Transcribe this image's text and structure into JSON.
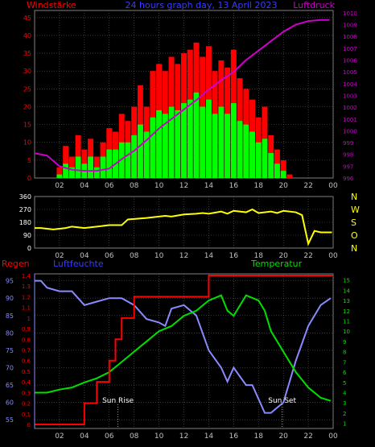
{
  "header": {
    "left_title": "Windstärke",
    "center_title": "24 hours graph day, 13 April 2023",
    "right_title": "Luftdruck"
  },
  "time_ticks": [
    "02",
    "04",
    "06",
    "08",
    "10",
    "12",
    "14",
    "16",
    "18",
    "20",
    "22",
    "00"
  ],
  "colors": {
    "wind_max": "#ff0000",
    "wind_avg": "#00ff00",
    "pressure": "#cc00cc",
    "direction": "#ffff00",
    "rain": "#ff0000",
    "humidity": "#8a8aff",
    "temperature": "#00e000",
    "left_axis": "#ff0000",
    "right_axis": "#cc00cc",
    "grid": "#606060",
    "label_blue": "#3a3aff"
  },
  "chart_data": [
    {
      "type": "bar",
      "title": "24 hours graph day, 13 April 2023",
      "series": [
        {
          "name": "Windstärke",
          "x": [
            0.5,
            1,
            1.5,
            2,
            2.5,
            3,
            3.5,
            4,
            4.5,
            5,
            5.5,
            6,
            6.5,
            7,
            7.5,
            8,
            8.5,
            9,
            9.5,
            10,
            10.5,
            11,
            11.5,
            12,
            12.5,
            13,
            13.5,
            14,
            14.5,
            15,
            15.5,
            16,
            16.5,
            17,
            17.5,
            18,
            18.5,
            19,
            19.5,
            20,
            20.5,
            21
          ],
          "values": [
            0,
            0,
            0,
            3,
            9,
            6,
            12,
            8,
            11,
            6,
            10,
            14,
            13,
            18,
            16,
            20,
            26,
            20,
            30,
            32,
            30,
            34,
            32,
            35,
            36,
            38,
            34,
            37,
            30,
            33,
            31,
            36,
            28,
            25,
            22,
            17,
            20,
            12,
            8,
            5,
            1,
            0
          ]
        },
        {
          "name": "Windstärke (avg)",
          "x": [
            0.5,
            1,
            1.5,
            2,
            2.5,
            3,
            3.5,
            4,
            4.5,
            5,
            5.5,
            6,
            6.5,
            7,
            7.5,
            8,
            8.5,
            9,
            9.5,
            10,
            10.5,
            11,
            11.5,
            12,
            12.5,
            13,
            13.5,
            14,
            14.5,
            15,
            15.5,
            16,
            16.5,
            17,
            17.5,
            18,
            18.5,
            19,
            19.5,
            20,
            20.5,
            21
          ],
          "values": [
            0,
            0,
            0,
            1,
            4,
            3,
            6,
            4,
            6,
            3,
            6,
            8,
            8,
            10,
            10,
            12,
            15,
            13,
            17,
            19,
            18,
            20,
            19,
            21,
            22,
            24,
            20,
            22,
            18,
            20,
            18,
            21,
            16,
            15,
            13,
            10,
            11,
            7,
            4,
            2,
            0,
            0
          ]
        },
        {
          "name": "Luftdruck",
          "axis": "right",
          "x": [
            0,
            1,
            2,
            3,
            4,
            5,
            6,
            7,
            8,
            9,
            10,
            11,
            12,
            13,
            14,
            15,
            16,
            17,
            18,
            19,
            20,
            21,
            22,
            23,
            23.7
          ],
          "values": [
            998.1,
            997.9,
            997.0,
            996.7,
            996.6,
            996.6,
            996.8,
            997.6,
            998.3,
            999.2,
            1000.2,
            1001.0,
            1001.8,
            1002.6,
            1003.5,
            1004.3,
            1005.0,
            1006.0,
            1006.8,
            1007.6,
            1008.4,
            1009.0,
            1009.3,
            1009.4,
            1009.4
          ]
        }
      ],
      "y_left_ticks": [
        0,
        5,
        10,
        15,
        20,
        25,
        30,
        35,
        40,
        45
      ],
      "ylim_left": [
        0,
        47
      ],
      "y_right_ticks": [
        996,
        997,
        998,
        999,
        1000,
        1001,
        1002,
        1003,
        1004,
        1005,
        1006,
        1007,
        1008,
        1009,
        1010
      ],
      "ylim_right": [
        996,
        1010.2
      ]
    },
    {
      "type": "line",
      "series": [
        {
          "name": "Wind direction",
          "x": [
            0,
            0.5,
            1.5,
            2.5,
            3,
            3.5,
            4,
            5,
            6,
            7,
            7.5,
            9,
            10,
            10.5,
            11,
            12,
            13,
            13.5,
            14,
            15,
            15.5,
            16,
            17,
            17.5,
            18,
            19,
            19.5,
            20,
            21,
            21.5,
            22,
            22.5,
            23,
            23.9
          ],
          "values": [
            140,
            140,
            130,
            140,
            150,
            145,
            140,
            150,
            160,
            160,
            200,
            210,
            220,
            225,
            220,
            235,
            240,
            245,
            240,
            255,
            240,
            260,
            250,
            270,
            245,
            255,
            245,
            260,
            250,
            230,
            30,
            120,
            110,
            110
          ]
        }
      ],
      "y_ticks": [
        0,
        90,
        180,
        270,
        360
      ],
      "ylim": [
        0,
        360
      ],
      "right_labels": [
        "N",
        "W",
        "S",
        "O",
        "N"
      ]
    },
    {
      "type": "line",
      "series": [
        {
          "name": "Regen",
          "axis": "left",
          "x": [
            0,
            4,
            4,
            5,
            5,
            6,
            6,
            6.5,
            6.5,
            7,
            7,
            8,
            8,
            14,
            14,
            24
          ],
          "values": [
            0,
            0,
            0.2,
            0.2,
            0.4,
            0.4,
            0.6,
            0.6,
            0.8,
            0.8,
            1.0,
            1.0,
            1.2,
            1.2,
            1.4,
            1.4
          ]
        },
        {
          "name": "Luftfeuchte",
          "axis": "left",
          "x": [
            0,
            0.5,
            1,
            2,
            3,
            4,
            5,
            6,
            7,
            8,
            9,
            10,
            10.5,
            11,
            12,
            13,
            14,
            15,
            15.5,
            16,
            17,
            17.5,
            18,
            18.5,
            19,
            20,
            21,
            22,
            23,
            23.8
          ],
          "values": [
            95,
            95,
            93,
            92,
            92,
            88,
            89,
            90,
            90,
            88,
            84,
            83,
            82,
            87,
            88,
            85,
            75,
            70,
            66,
            70,
            65,
            65,
            61,
            57,
            57,
            60,
            72,
            82,
            88,
            90
          ]
        },
        {
          "name": "Temperatur",
          "axis": "right",
          "x": [
            0,
            1,
            2,
            3,
            4,
            5,
            6,
            7,
            8,
            9,
            10,
            11,
            12,
            13,
            14,
            15,
            15.5,
            16,
            17,
            18,
            18.5,
            19,
            20,
            21,
            22,
            23,
            23.8
          ],
          "values": [
            4,
            4,
            4.3,
            4.5,
            5,
            5.4,
            6,
            7,
            8,
            9,
            10,
            10.5,
            11.5,
            12,
            13,
            13.5,
            12,
            11.5,
            13.5,
            13,
            12,
            10,
            8,
            6,
            4.5,
            3.5,
            3.2
          ]
        }
      ],
      "y_left_ticks": [
        55,
        60,
        65,
        70,
        75,
        80,
        85,
        90,
        95
      ],
      "ylim_left": [
        52.5,
        97
      ],
      "y_rain_ticks": [
        0,
        0.1,
        0.2,
        0.3,
        0.4,
        0.5,
        0.6,
        0.7,
        0.8,
        0.9,
        1,
        1.1,
        1.2,
        1.3,
        1.4
      ],
      "y_right_ticks": [
        1,
        2,
        3,
        4,
        5,
        6,
        7,
        8,
        9,
        10,
        11,
        12,
        13,
        14,
        15
      ],
      "ylim_right": [
        0.5,
        15.6
      ],
      "annotations": [
        {
          "text": "Sun Rise",
          "x": 6.7
        },
        {
          "text": "Sun Set",
          "x": 19.9
        }
      ],
      "legend": {
        "rain": "Regen",
        "humidity": "Luftfeuchte",
        "temperature": "Temperatur"
      }
    }
  ]
}
